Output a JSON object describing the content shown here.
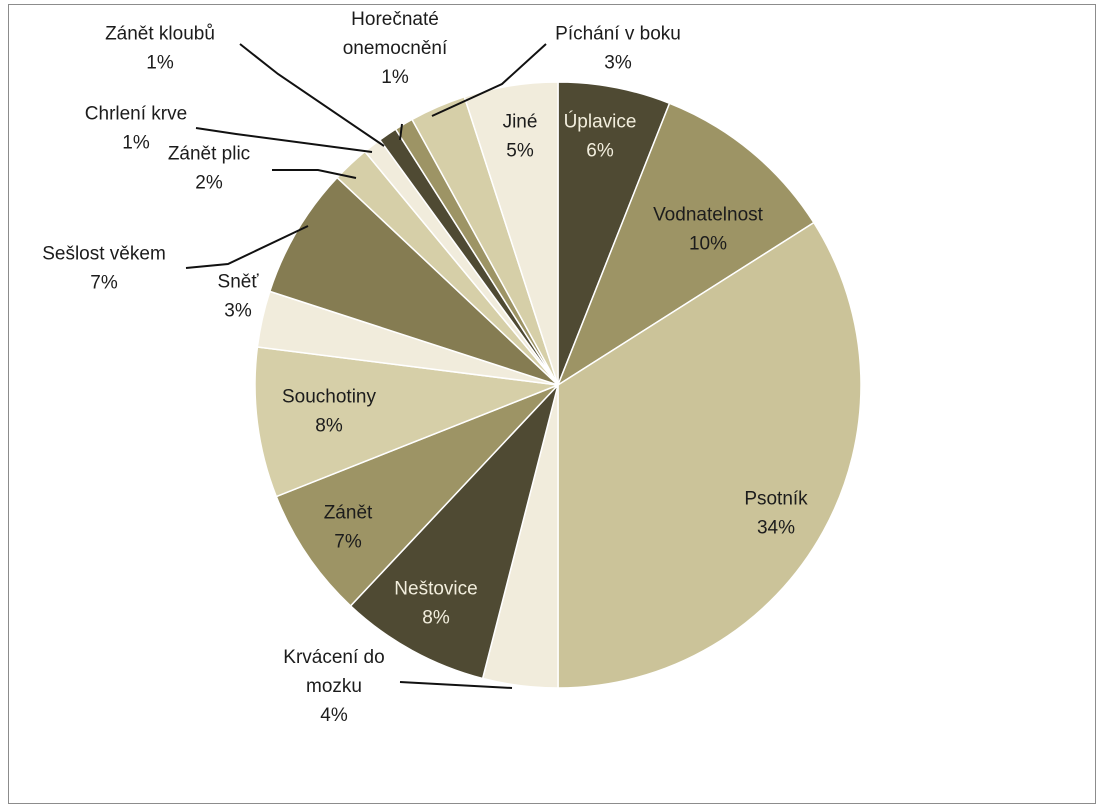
{
  "chart_data": {
    "type": "pie",
    "title": "",
    "slices": [
      {
        "label": "Úplavice",
        "value": 6,
        "pct": "6%",
        "color": "#4f4a33",
        "text": "#f2eedd"
      },
      {
        "label": "Vodnatelnost",
        "value": 10,
        "pct": "10%",
        "color": "#9d9465",
        "text": "#1c1c1c"
      },
      {
        "label": "Psotník",
        "value": 34,
        "pct": "34%",
        "color": "#cbc399",
        "text": "#1c1c1c"
      },
      {
        "label": "Krvácení do mozku",
        "value": 4,
        "pct": "4%",
        "color": "#f1ecdc",
        "text": "#1c1c1c"
      },
      {
        "label": "Neštovice",
        "value": 8,
        "pct": "8%",
        "color": "#4f4a33",
        "text": "#f2eedd"
      },
      {
        "label": "Zánět",
        "value": 7,
        "pct": "7%",
        "color": "#9d9465",
        "text": "#1c1c1c"
      },
      {
        "label": "Souchotiny",
        "value": 8,
        "pct": "8%",
        "color": "#d6cfa8",
        "text": "#1c1c1c"
      },
      {
        "label": "Sněť",
        "value": 3,
        "pct": "3%",
        "color": "#f1ecdc",
        "text": "#1c1c1c"
      },
      {
        "label": "Sešlost věkem",
        "value": 7,
        "pct": "7%",
        "color": "#857c52",
        "text": "#1c1c1c"
      },
      {
        "label": "Zánět plic",
        "value": 2,
        "pct": "2%",
        "color": "#d6cfa8",
        "text": "#1c1c1c"
      },
      {
        "label": "Chrlení krve",
        "value": 1,
        "pct": "1%",
        "color": "#f1ecdc",
        "text": "#1c1c1c"
      },
      {
        "label": "Zánět kloubů",
        "value": 1,
        "pct": "1%",
        "color": "#4f4a33",
        "text": "#1c1c1c"
      },
      {
        "label": "Horečnaté onemocnění",
        "value": 1,
        "pct": "1%",
        "color": "#9d9465",
        "text": "#1c1c1c"
      },
      {
        "label": "Píchání v boku",
        "value": 3,
        "pct": "3%",
        "color": "#d6cfa8",
        "text": "#1c1c1c"
      },
      {
        "label": "Jiné",
        "value": 5,
        "pct": "5%",
        "color": "#f1ecdc",
        "text": "#1c1c1c"
      }
    ]
  }
}
